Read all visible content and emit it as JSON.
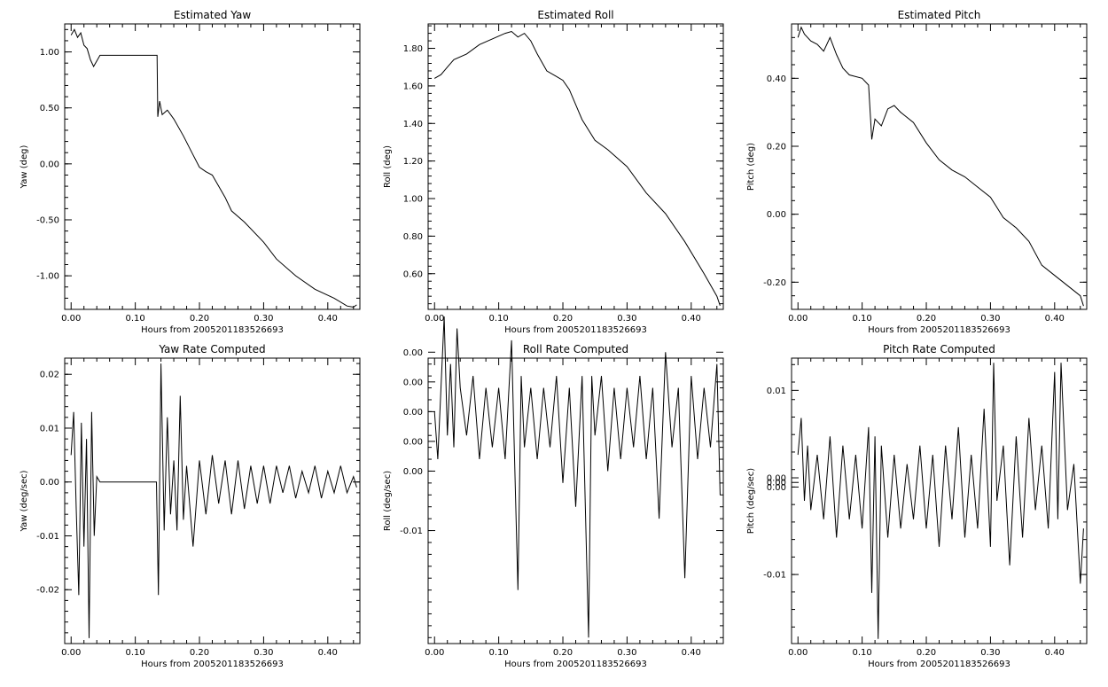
{
  "chart_data": [
    {
      "type": "line",
      "title": "Estimated Yaw",
      "xlabel": "Hours from 2005201183526693",
      "ylabel": "Yaw (deg)",
      "xlim": [
        -0.01,
        0.45
      ],
      "ylim": [
        -1.3,
        1.25
      ],
      "xticks": [
        "0.00",
        "0.10",
        "0.20",
        "0.30",
        "0.40"
      ],
      "yticks": [
        "-1.00",
        "-0.50",
        "0.00",
        "0.50",
        "1.00"
      ],
      "yticks_values": [
        -1.0,
        -0.5,
        0.0,
        0.5,
        1.0
      ],
      "series": [
        {
          "x": [
            0.0,
            0.005,
            0.01,
            0.015,
            0.02,
            0.025,
            0.03,
            0.035,
            0.04,
            0.045,
            0.07,
            0.1,
            0.134,
            0.135,
            0.138,
            0.142,
            0.15,
            0.16,
            0.175,
            0.19,
            0.2,
            0.21,
            0.22,
            0.24,
            0.25,
            0.27,
            0.3,
            0.32,
            0.35,
            0.38,
            0.41,
            0.43,
            0.44,
            0.445
          ],
          "y": [
            1.15,
            1.2,
            1.13,
            1.17,
            1.06,
            1.03,
            0.93,
            0.87,
            0.92,
            0.97,
            0.97,
            0.97,
            0.97,
            0.42,
            0.56,
            0.44,
            0.48,
            0.4,
            0.25,
            0.08,
            -0.03,
            -0.07,
            -0.1,
            -0.3,
            -0.42,
            -0.52,
            -0.7,
            -0.85,
            -1.0,
            -1.12,
            -1.2,
            -1.27,
            -1.28,
            -1.26
          ]
        }
      ]
    },
    {
      "type": "line",
      "title": "Estimated Roll",
      "xlabel": "Hours from 2005201183526693",
      "ylabel": "Roll (deg)",
      "xlim": [
        -0.01,
        0.45
      ],
      "ylim": [
        0.41,
        1.93
      ],
      "xticks": [
        "0.00",
        "0.10",
        "0.20",
        "0.30",
        "0.40"
      ],
      "yticks": [
        "0.60",
        "0.80",
        "1.00",
        "1.20",
        "1.40",
        "1.60",
        "1.80"
      ],
      "yticks_values": [
        0.6,
        0.8,
        1.0,
        1.2,
        1.4,
        1.6,
        1.8
      ],
      "series": [
        {
          "x": [
            0.0,
            0.01,
            0.02,
            0.03,
            0.05,
            0.07,
            0.09,
            0.11,
            0.12,
            0.13,
            0.14,
            0.15,
            0.16,
            0.175,
            0.19,
            0.2,
            0.21,
            0.22,
            0.23,
            0.25,
            0.27,
            0.3,
            0.33,
            0.36,
            0.39,
            0.42,
            0.44,
            0.445
          ],
          "y": [
            1.64,
            1.66,
            1.7,
            1.74,
            1.77,
            1.82,
            1.85,
            1.88,
            1.89,
            1.86,
            1.88,
            1.84,
            1.77,
            1.68,
            1.65,
            1.63,
            1.58,
            1.5,
            1.42,
            1.31,
            1.26,
            1.17,
            1.03,
            0.92,
            0.77,
            0.6,
            0.48,
            0.43
          ]
        }
      ]
    },
    {
      "type": "line",
      "title": "Estimated Pitch",
      "xlabel": "Hours from 2005201183526693",
      "ylabel": "Pitch (deg)",
      "xlim": [
        -0.01,
        0.45
      ],
      "ylim": [
        -0.28,
        0.56
      ],
      "xticks": [
        "0.00",
        "0.10",
        "0.20",
        "0.30",
        "0.40"
      ],
      "yticks": [
        "-0.20",
        "0.00",
        "0.20",
        "0.40"
      ],
      "yticks_values": [
        -0.2,
        0.0,
        0.2,
        0.4
      ],
      "series": [
        {
          "x": [
            0.0,
            0.005,
            0.01,
            0.02,
            0.03,
            0.04,
            0.05,
            0.06,
            0.07,
            0.08,
            0.1,
            0.11,
            0.115,
            0.12,
            0.13,
            0.14,
            0.15,
            0.16,
            0.18,
            0.2,
            0.22,
            0.24,
            0.26,
            0.28,
            0.3,
            0.31,
            0.32,
            0.34,
            0.36,
            0.38,
            0.4,
            0.42,
            0.44,
            0.445
          ],
          "y": [
            0.52,
            0.55,
            0.53,
            0.51,
            0.5,
            0.48,
            0.52,
            0.47,
            0.43,
            0.41,
            0.4,
            0.38,
            0.22,
            0.28,
            0.26,
            0.31,
            0.32,
            0.3,
            0.27,
            0.21,
            0.16,
            0.13,
            0.11,
            0.08,
            0.05,
            0.02,
            -0.01,
            -0.04,
            -0.08,
            -0.15,
            -0.18,
            -0.21,
            -0.24,
            -0.27
          ]
        }
      ]
    },
    {
      "type": "line",
      "title": "Yaw Rate Computed",
      "xlabel": "Hours from 2005201183526693",
      "ylabel": "Yaw (deg/sec)",
      "xlim": [
        -0.01,
        0.45
      ],
      "ylim": [
        -0.03,
        0.023
      ],
      "xticks": [
        "0.00",
        "0.10",
        "0.20",
        "0.30",
        "0.40"
      ],
      "yticks": [
        "-0.02",
        "-0.01",
        "0.00",
        "0.01",
        "0.02"
      ],
      "yticks_values": [
        -0.02,
        -0.01,
        0.0,
        0.01,
        0.02
      ],
      "series": [
        {
          "x": [
            0.0,
            0.004,
            0.008,
            0.012,
            0.016,
            0.02,
            0.024,
            0.028,
            0.032,
            0.036,
            0.04,
            0.045,
            0.08,
            0.133,
            0.136,
            0.14,
            0.145,
            0.15,
            0.155,
            0.16,
            0.165,
            0.17,
            0.175,
            0.18,
            0.19,
            0.2,
            0.21,
            0.22,
            0.23,
            0.24,
            0.25,
            0.26,
            0.27,
            0.28,
            0.29,
            0.3,
            0.31,
            0.32,
            0.33,
            0.34,
            0.35,
            0.36,
            0.37,
            0.38,
            0.39,
            0.4,
            0.41,
            0.42,
            0.43,
            0.44,
            0.445
          ],
          "y": [
            0.005,
            0.013,
            -0.005,
            -0.021,
            0.011,
            -0.012,
            0.008,
            -0.029,
            0.013,
            -0.01,
            0.001,
            0.0,
            0.0,
            0.0,
            -0.021,
            0.022,
            -0.009,
            0.012,
            -0.006,
            0.004,
            -0.009,
            0.016,
            -0.007,
            0.003,
            -0.012,
            0.004,
            -0.006,
            0.005,
            -0.004,
            0.004,
            -0.006,
            0.004,
            -0.005,
            0.003,
            -0.004,
            0.003,
            -0.004,
            0.003,
            -0.002,
            0.003,
            -0.003,
            0.002,
            -0.002,
            0.003,
            -0.003,
            0.002,
            -0.002,
            0.003,
            -0.002,
            0.001,
            -0.001
          ]
        }
      ]
    },
    {
      "type": "line",
      "title": "Roll Rate Computed",
      "xlabel": "Hours from 2005201183526693",
      "ylabel": "Roll (deg/sec)",
      "xlim": [
        -0.01,
        0.45
      ],
      "ylim": [
        -0.0195,
        0.0045
      ],
      "xticks": [
        "0.00",
        "0.10",
        "0.20",
        "0.30",
        "0.40"
      ],
      "yticks": [
        "-0.01",
        "0.00",
        "0.00",
        "0.00",
        "0.00",
        "0.00"
      ],
      "yticks_values": [
        -0.01,
        -0.005,
        -0.0025,
        0.0,
        0.0025,
        0.005
      ],
      "series": [
        {
          "x": [
            0.0,
            0.005,
            0.01,
            0.015,
            0.02,
            0.025,
            0.03,
            0.035,
            0.04,
            0.05,
            0.06,
            0.07,
            0.08,
            0.09,
            0.1,
            0.11,
            0.12,
            0.13,
            0.135,
            0.14,
            0.15,
            0.16,
            0.17,
            0.18,
            0.19,
            0.2,
            0.21,
            0.22,
            0.23,
            0.24,
            0.245,
            0.25,
            0.26,
            0.27,
            0.28,
            0.29,
            0.3,
            0.31,
            0.32,
            0.33,
            0.34,
            0.35,
            0.36,
            0.37,
            0.38,
            0.39,
            0.4,
            0.41,
            0.42,
            0.43,
            0.44,
            0.445
          ],
          "y": [
            0.0,
            -0.004,
            0.002,
            0.008,
            -0.002,
            0.004,
            -0.003,
            0.007,
            0.002,
            -0.002,
            0.003,
            -0.004,
            0.002,
            -0.003,
            0.002,
            -0.004,
            0.006,
            -0.015,
            0.003,
            -0.003,
            0.002,
            -0.004,
            0.002,
            -0.003,
            0.003,
            -0.006,
            0.002,
            -0.008,
            0.003,
            -0.019,
            0.003,
            -0.002,
            0.003,
            -0.005,
            0.002,
            -0.004,
            0.002,
            -0.003,
            0.003,
            -0.004,
            0.002,
            -0.009,
            0.005,
            -0.003,
            0.002,
            -0.014,
            0.003,
            -0.004,
            0.002,
            -0.003,
            0.004,
            -0.007
          ]
        }
      ]
    },
    {
      "type": "line",
      "title": "Pitch Rate Computed",
      "xlabel": "Hours from 2005201183526693",
      "ylabel": "Pitch (deg/sec)",
      "xlim": [
        -0.01,
        0.45
      ],
      "ylim": [
        -0.0175,
        0.0135
      ],
      "xticks": [
        "0.00",
        "0.10",
        "0.20",
        "0.30",
        "0.40"
      ],
      "yticks": [
        "-0.01",
        "0.00",
        "0.00",
        "0.00",
        "0.01"
      ],
      "yticks_values": [
        -0.01,
        -0.0005,
        0.0,
        0.0005,
        0.01
      ],
      "series": [
        {
          "x": [
            0.0,
            0.005,
            0.01,
            0.015,
            0.02,
            0.03,
            0.04,
            0.05,
            0.06,
            0.07,
            0.08,
            0.09,
            0.1,
            0.11,
            0.115,
            0.12,
            0.125,
            0.13,
            0.14,
            0.15,
            0.16,
            0.17,
            0.18,
            0.19,
            0.2,
            0.21,
            0.22,
            0.23,
            0.24,
            0.25,
            0.26,
            0.27,
            0.28,
            0.29,
            0.3,
            0.305,
            0.31,
            0.32,
            0.33,
            0.34,
            0.35,
            0.36,
            0.37,
            0.38,
            0.39,
            0.4,
            0.405,
            0.41,
            0.42,
            0.43,
            0.44,
            0.445
          ],
          "y": [
            0.003,
            0.007,
            -0.002,
            0.004,
            -0.003,
            0.003,
            -0.004,
            0.005,
            -0.006,
            0.004,
            -0.004,
            0.003,
            -0.005,
            0.006,
            -0.012,
            0.005,
            -0.017,
            0.004,
            -0.006,
            0.003,
            -0.005,
            0.002,
            -0.004,
            0.004,
            -0.005,
            0.003,
            -0.007,
            0.004,
            -0.004,
            0.006,
            -0.006,
            0.003,
            -0.005,
            0.008,
            -0.007,
            0.013,
            -0.002,
            0.004,
            -0.009,
            0.005,
            -0.006,
            0.007,
            -0.003,
            0.004,
            -0.005,
            0.012,
            -0.004,
            0.013,
            -0.003,
            0.002,
            -0.011,
            -0.005
          ]
        }
      ]
    }
  ]
}
